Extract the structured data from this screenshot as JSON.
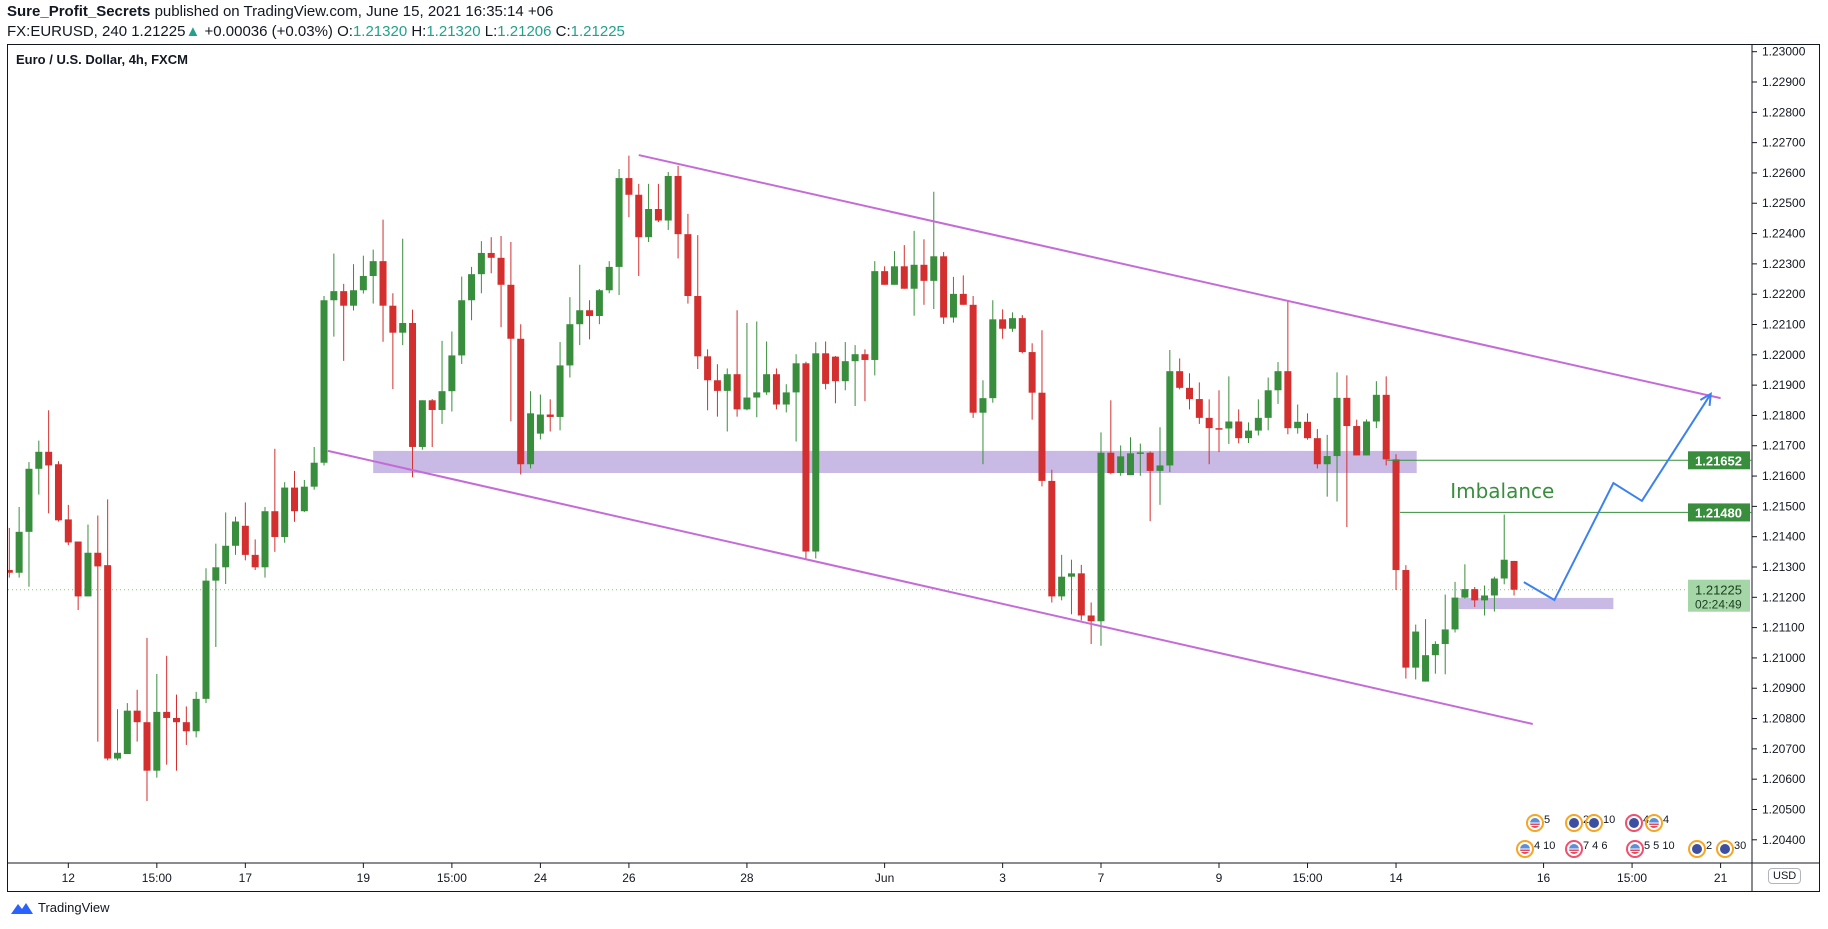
{
  "header": {
    "author": "Sure_Profit_Secrets",
    "published": "published on TradingView.com, June 15, 2021 16:35:14 +06",
    "symbol": "FX:EURUSD, 240",
    "last": "1.21225",
    "change": "+0.00036 (+0.03%)",
    "o_label": "O:",
    "o": "1.21320",
    "h_label": "H:",
    "h": "1.21320",
    "l_label": "L:",
    "l": "1.21206",
    "c_label": "C:",
    "c": "1.21225"
  },
  "currency_button": "USD",
  "footer": {
    "brand": "TradingView"
  },
  "colors": {
    "up": "#388e3c",
    "down": "#d32f2f",
    "channel": "#c56bd8",
    "zone": "#c9b9e5",
    "level": "#388e3c",
    "path": "#3b82f0"
  },
  "chart_data": {
    "type": "candlestick",
    "title": "Euro / U.S. Dollar, 4h, FXCM",
    "ylim": [
      1.203,
      1.2305
    ],
    "y_ticks": [
      "1.23000",
      "1.22900",
      "1.22800",
      "1.22700",
      "1.22600",
      "1.22500",
      "1.22400",
      "1.22300",
      "1.22200",
      "1.22100",
      "1.22000",
      "1.21900",
      "1.21800",
      "1.21700",
      "1.21600",
      "1.21500",
      "1.21400",
      "1.21300",
      "1.21200",
      "1.21100",
      "1.21000",
      "1.20900",
      "1.20800",
      "1.20700",
      "1.20600",
      "1.20500",
      "1.20400"
    ],
    "x_ticks": [
      {
        "bar": 6,
        "label": "12"
      },
      {
        "bar": 15,
        "label": "15:00"
      },
      {
        "bar": 24,
        "label": "17"
      },
      {
        "bar": 36,
        "label": "19"
      },
      {
        "bar": 45,
        "label": "15:00"
      },
      {
        "bar": 54,
        "label": "24"
      },
      {
        "bar": 63,
        "label": "26"
      },
      {
        "bar": 75,
        "label": "28"
      },
      {
        "bar": 89,
        "label": "Jun"
      },
      {
        "bar": 101,
        "label": "3"
      },
      {
        "bar": 111,
        "label": "7"
      },
      {
        "bar": 123,
        "label": "9"
      },
      {
        "bar": 132,
        "label": "15:00"
      },
      {
        "bar": 141,
        "label": "14"
      },
      {
        "bar": 156,
        "label": "16"
      },
      {
        "bar": 165,
        "label": "15:00"
      },
      {
        "bar": 174,
        "label": "21"
      }
    ],
    "candles_ohlc": [
      [
        1.2129,
        1.21429,
        1.21265,
        1.21281
      ],
      [
        1.21281,
        1.21498,
        1.21265,
        1.21416
      ],
      [
        1.21416,
        1.21646,
        1.21235,
        1.21624
      ],
      [
        1.21624,
        1.21717,
        1.21539,
        1.2168
      ],
      [
        1.2168,
        1.21817,
        1.21477,
        1.21635
      ],
      [
        1.21639,
        1.21649,
        1.2145,
        1.21454
      ],
      [
        1.21457,
        1.21505,
        1.21372,
        1.21381
      ],
      [
        1.21384,
        1.21384,
        1.21158,
        1.21203
      ],
      [
        1.21203,
        1.2144,
        1.21203,
        1.21347
      ],
      [
        1.21347,
        1.2147,
        1.20724,
        1.21302
      ],
      [
        1.21306,
        1.21523,
        1.20662,
        1.20668
      ],
      [
        1.20668,
        1.20831,
        1.20662,
        1.20687
      ],
      [
        1.20683,
        1.20851,
        1.20683,
        1.20826
      ],
      [
        1.20826,
        1.20895,
        1.20724,
        1.20788
      ],
      [
        1.20788,
        1.21066,
        1.20528,
        1.20628
      ],
      [
        1.20628,
        1.20947,
        1.20605,
        1.20822
      ],
      [
        1.20822,
        1.21007,
        1.20648,
        1.20802
      ],
      [
        1.20802,
        1.20879,
        1.20628,
        1.20788
      ],
      [
        1.20788,
        1.2084,
        1.20713,
        1.20758
      ],
      [
        1.20758,
        1.20888,
        1.20738,
        1.20865
      ],
      [
        1.20865,
        1.21296,
        1.20851,
        1.21255
      ],
      [
        1.21255,
        1.21377,
        1.21036,
        1.21299
      ],
      [
        1.21299,
        1.2148,
        1.21244,
        1.2137
      ],
      [
        1.2137,
        1.21466,
        1.2134,
        1.2145
      ],
      [
        1.21436,
        1.21513,
        1.21322,
        1.2134
      ],
      [
        1.2134,
        1.21391,
        1.2129,
        1.21299
      ],
      [
        1.21299,
        1.21498,
        1.21265,
        1.21484
      ],
      [
        1.21484,
        1.2169,
        1.2135,
        1.21399
      ],
      [
        1.21399,
        1.2158,
        1.2138,
        1.21562
      ],
      [
        1.21562,
        1.21617,
        1.21449,
        1.21484
      ],
      [
        1.21484,
        1.21587,
        1.21481,
        1.21565
      ],
      [
        1.21565,
        1.21696,
        1.21555,
        1.21644
      ],
      [
        1.21644,
        1.22194,
        1.21635,
        1.2218
      ],
      [
        1.2218,
        1.22334,
        1.2206,
        1.2221
      ],
      [
        1.2221,
        1.22234,
        1.2198,
        1.22162
      ],
      [
        1.22162,
        1.22299,
        1.22146,
        1.22213
      ],
      [
        1.22213,
        1.22327,
        1.22202,
        1.2226
      ],
      [
        1.2226,
        1.22347,
        1.22169,
        1.22309
      ],
      [
        1.22309,
        1.22446,
        1.22043,
        1.22162
      ],
      [
        1.22162,
        1.22203,
        1.21887,
        1.22073
      ],
      [
        1.22073,
        1.22383,
        1.22032,
        1.22105
      ],
      [
        1.22105,
        1.22149,
        1.21596,
        1.21696
      ],
      [
        1.21696,
        1.2185,
        1.21687,
        1.2185
      ],
      [
        1.2185,
        1.21854,
        1.21696,
        1.21818
      ],
      [
        1.21818,
        1.22046,
        1.21772,
        1.2188
      ],
      [
        1.2188,
        1.22077,
        1.21813,
        1.21998
      ],
      [
        1.21998,
        1.22258,
        1.2197,
        1.2218
      ],
      [
        1.2218,
        1.2229,
        1.22114,
        1.22266
      ],
      [
        1.22266,
        1.22375,
        1.22203,
        1.22336
      ],
      [
        1.22336,
        1.22388,
        1.22269,
        1.2232
      ],
      [
        1.2232,
        1.22392,
        1.22091,
        1.22231
      ],
      [
        1.22231,
        1.22372,
        1.21781,
        1.22053
      ],
      [
        1.22053,
        1.22101,
        1.21605,
        1.21639
      ],
      [
        1.21639,
        1.2188,
        1.21625,
        1.21807
      ],
      [
        1.2174,
        1.21869,
        1.21721,
        1.21803
      ],
      [
        1.21803,
        1.21853,
        1.21747,
        1.21795
      ],
      [
        1.21795,
        1.22042,
        1.21751,
        1.21965
      ],
      [
        1.21965,
        1.2219,
        1.21925,
        1.22101
      ],
      [
        1.22101,
        1.22297,
        1.22032,
        1.22147
      ],
      [
        1.22147,
        1.2218,
        1.22051,
        1.22128
      ],
      [
        1.22128,
        1.22217,
        1.22101,
        1.22213
      ],
      [
        1.22213,
        1.22309,
        1.22203,
        1.2229
      ],
      [
        1.2229,
        1.22613,
        1.22197,
        1.22583
      ],
      [
        1.22583,
        1.22657,
        1.22454,
        1.22528
      ],
      [
        1.22528,
        1.22564,
        1.2226,
        1.22388
      ],
      [
        1.22388,
        1.22564,
        1.22372,
        1.22481
      ],
      [
        1.22481,
        1.22564,
        1.22438,
        1.22443
      ],
      [
        1.22443,
        1.22603,
        1.22412,
        1.2259
      ],
      [
        1.2259,
        1.22623,
        1.22318,
        1.22398
      ],
      [
        1.22398,
        1.22465,
        1.22169,
        1.22194
      ],
      [
        1.22194,
        1.22395,
        1.21953,
        1.21995
      ],
      [
        1.21995,
        1.22018,
        1.21817,
        1.21916
      ],
      [
        1.21916,
        1.21969,
        1.21796,
        1.21881
      ],
      [
        1.21881,
        1.21955,
        1.21747,
        1.21936
      ],
      [
        1.21936,
        1.22147,
        1.21796,
        1.2182
      ],
      [
        1.2182,
        1.22105,
        1.21817,
        1.21859
      ],
      [
        1.21859,
        1.2211,
        1.21794,
        1.21876
      ],
      [
        1.21876,
        1.22044,
        1.21868,
        1.21936
      ],
      [
        1.21936,
        1.21955,
        1.2182,
        1.21836
      ],
      [
        1.21836,
        1.21903,
        1.2181,
        1.21876
      ],
      [
        1.21876,
        1.22002,
        1.21714,
        1.21972
      ],
      [
        1.21972,
        1.21977,
        1.21328,
        1.21351
      ],
      [
        1.21351,
        1.22042,
        1.21328,
        1.22005
      ],
      [
        1.22005,
        1.22044,
        1.21886,
        1.21904
      ],
      [
        1.21994,
        1.21996,
        1.2184,
        1.21913
      ],
      [
        1.21913,
        1.22042,
        1.21883,
        1.21979
      ],
      [
        1.21979,
        1.22032,
        1.21831,
        1.22002
      ],
      [
        1.22002,
        1.22018,
        1.21847,
        1.21983
      ],
      [
        1.21983,
        1.22309,
        1.21932,
        1.22276
      ],
      [
        1.22276,
        1.22292,
        1.22231,
        1.22231
      ],
      [
        1.22231,
        1.22342,
        1.22231,
        1.22292
      ],
      [
        1.22292,
        1.22362,
        1.22218,
        1.22218
      ],
      [
        1.22218,
        1.22409,
        1.22129,
        1.22297
      ],
      [
        1.22297,
        1.22381,
        1.22165,
        1.22244
      ],
      [
        1.22244,
        1.22538,
        1.22151,
        1.22325
      ],
      [
        1.22325,
        1.22339,
        1.22102,
        1.22123
      ],
      [
        1.22123,
        1.22257,
        1.22106,
        1.22201
      ],
      [
        1.22201,
        1.22262,
        1.22165,
        1.22165
      ],
      [
        1.22165,
        1.22194,
        1.21792,
        1.21809
      ],
      [
        1.21809,
        1.21916,
        1.21639,
        1.21857
      ],
      [
        1.21857,
        1.2218,
        1.21842,
        1.22117
      ],
      [
        1.22117,
        1.2215,
        1.22053,
        1.22086
      ],
      [
        1.22086,
        1.2214,
        1.22076,
        1.22121
      ],
      [
        1.22121,
        1.22131,
        1.22005,
        1.22009
      ],
      [
        1.22009,
        1.22038,
        1.21786,
        1.21875
      ],
      [
        1.21875,
        1.22081,
        1.21566,
        1.21584
      ],
      [
        1.21584,
        1.21621,
        1.21183,
        1.21203
      ],
      [
        1.21203,
        1.2134,
        1.2119,
        1.21268
      ],
      [
        1.21268,
        1.21324,
        1.21144,
        1.21279
      ],
      [
        1.21279,
        1.21307,
        1.21124,
        1.2114
      ],
      [
        1.2114,
        1.21183,
        1.21046,
        1.21121
      ],
      [
        1.21121,
        1.21744,
        1.2104,
        1.21677
      ],
      [
        1.21677,
        1.2185,
        1.21606,
        1.2161
      ],
      [
        1.2161,
        1.21701,
        1.21601,
        1.21665
      ],
      [
        1.21603,
        1.21728,
        1.21603,
        1.21675
      ],
      [
        1.21675,
        1.21707,
        1.21601,
        1.21678
      ],
      [
        1.21677,
        1.21681,
        1.21451,
        1.21617
      ],
      [
        1.21617,
        1.21761,
        1.21505,
        1.21635
      ],
      [
        1.21635,
        1.22016,
        1.21613,
        1.21946
      ],
      [
        1.21946,
        1.21988,
        1.21886,
        1.21891
      ],
      [
        1.21891,
        1.21939,
        1.2182,
        1.21854
      ],
      [
        1.21854,
        1.21909,
        1.21772,
        1.21792
      ],
      [
        1.21792,
        1.21853,
        1.21639,
        1.21758
      ],
      [
        1.21758,
        1.21883,
        1.21679,
        1.21757
      ],
      [
        1.21757,
        1.21929,
        1.21706,
        1.2178
      ],
      [
        1.2178,
        1.2182,
        1.21708,
        1.21725
      ],
      [
        1.21725,
        1.21777,
        1.21709,
        1.2175
      ],
      [
        1.2175,
        1.21853,
        1.21734,
        1.21792
      ],
      [
        1.21792,
        1.21925,
        1.21751,
        1.21883
      ],
      [
        1.21883,
        1.21976,
        1.21838,
        1.21946
      ],
      [
        1.21946,
        1.22176,
        1.21738,
        1.21758
      ],
      [
        1.21758,
        1.21836,
        1.2174,
        1.21779
      ],
      [
        1.21779,
        1.21807,
        1.2172,
        1.21725
      ],
      [
        1.21725,
        1.21755,
        1.21625,
        1.21639
      ],
      [
        1.21639,
        1.21736,
        1.21532,
        1.21666
      ],
      [
        1.21666,
        1.21942,
        1.21516,
        1.21858
      ],
      [
        1.21858,
        1.21932,
        1.21432,
        1.21765
      ],
      [
        1.21765,
        1.21786,
        1.21668,
        1.21668
      ],
      [
        1.21668,
        1.21787,
        1.21668,
        1.2178
      ],
      [
        1.2178,
        1.21913,
        1.21758,
        1.21868
      ],
      [
        1.21868,
        1.21929,
        1.21635,
        1.21655
      ],
      [
        1.21655,
        1.21672,
        1.21224,
        1.2129
      ],
      [
        1.2129,
        1.21306,
        1.20932,
        1.20968
      ],
      [
        1.20968,
        1.2111,
        1.20929,
        1.21087
      ],
      [
        1.20922,
        1.21128,
        1.20922,
        1.21009
      ],
      [
        1.21009,
        1.21055,
        1.20948,
        1.21046
      ],
      [
        1.21046,
        1.21209,
        1.20946,
        1.21094
      ],
      [
        1.21094,
        1.21251,
        1.21084,
        1.21199
      ],
      [
        1.21199,
        1.21309,
        1.21196,
        1.21227
      ],
      [
        1.21227,
        1.21234,
        1.21168,
        1.2119
      ],
      [
        1.2119,
        1.21239,
        1.2114,
        1.21206
      ],
      [
        1.21206,
        1.21268,
        1.21153,
        1.21262
      ],
      [
        1.21262,
        1.21473,
        1.21243,
        1.21324
      ],
      [
        1.2132,
        1.2132,
        1.21206,
        1.21225
      ]
    ],
    "current_price": {
      "value": 1.21225,
      "label": "1.21225",
      "countdown": "02:24:49"
    },
    "drawings": {
      "channel_upper": [
        [
          64.0,
          1.22659
        ],
        [
          174.0,
          1.21857
        ]
      ],
      "channel_lower": [
        [
          32.4,
          1.21683
        ],
        [
          154.9,
          1.20782
        ]
      ],
      "zone_main": {
        "from_bar": 37.0,
        "to_bar": 143.1,
        "top": 1.21683,
        "bottom": 1.2161
      },
      "zone_small": {
        "from_bar": 147.4,
        "to_bar": 163.1,
        "top": 1.21198,
        "bottom": 1.21161
      },
      "levels": [
        {
          "from_bar": 140.1,
          "value": 1.21652,
          "label": "1.21652"
        },
        {
          "from_bar": 141.4,
          "value": 1.2148,
          "label": "1.21480"
        }
      ],
      "annotation": {
        "text": "Imbalance",
        "bar": 151.8,
        "price": 1.2155
      },
      "projection_path": [
        [
          154.0,
          1.2125
        ],
        [
          157.1,
          1.21191
        ],
        [
          163.1,
          1.21577
        ],
        [
          166.0,
          1.21518
        ],
        [
          173.0,
          1.21871
        ]
      ]
    }
  },
  "events": {
    "row1": [
      {
        "type": "us",
        "count": "5"
      },
      {
        "type": "eu",
        "count": "2"
      },
      {
        "type": "eu",
        "count": "10"
      },
      {
        "type": "eu-red",
        "count": "4"
      },
      {
        "type": "us",
        "count": "4"
      }
    ],
    "row2": [
      {
        "type": "us",
        "count": "4 10"
      },
      {
        "type": "us-red",
        "count": "7 4 6"
      },
      {
        "type": "us-red",
        "count": "5 5 10"
      },
      {
        "type": "eu",
        "count": "2"
      },
      {
        "type": "eu",
        "count": "30"
      }
    ]
  }
}
